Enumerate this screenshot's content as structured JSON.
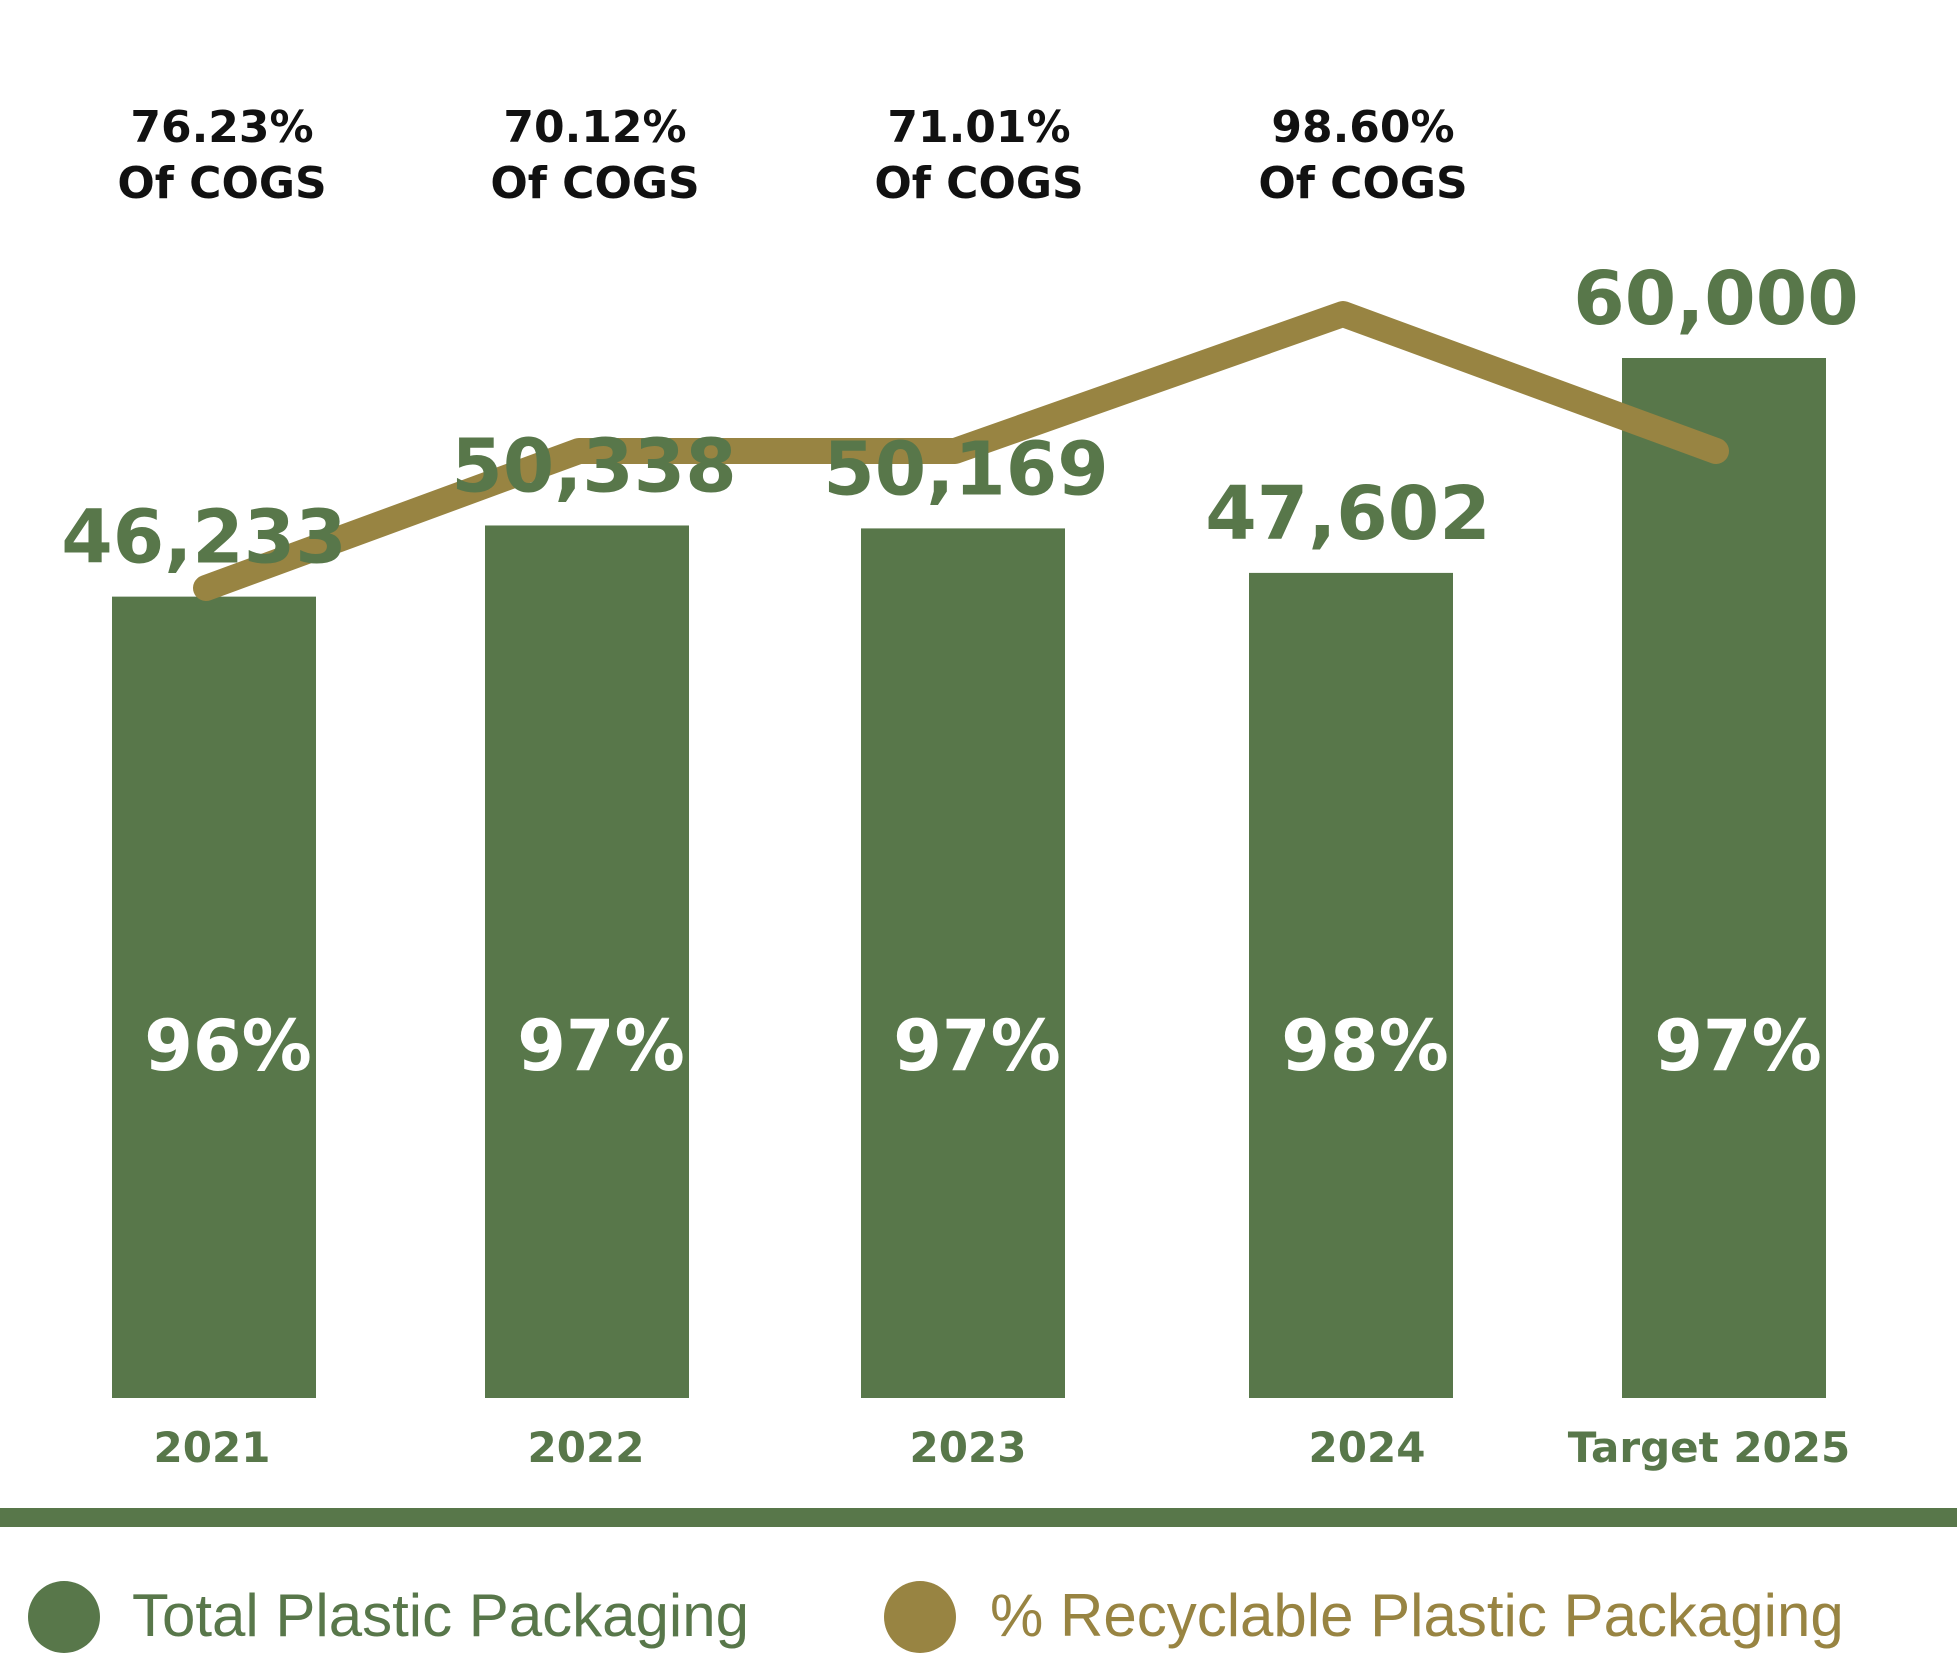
{
  "colors": {
    "total": "#58774A",
    "recyclable": "#988442",
    "text": "#111111",
    "bar_label": "#ffffff"
  },
  "chart_data": {
    "type": "bar",
    "categories": [
      "2021",
      "2022",
      "2023",
      "2024",
      "Target  2025"
    ],
    "series": [
      {
        "name": "Total Plastic Packaging",
        "values": [
          46233,
          50338,
          50169,
          47602,
          60000
        ]
      },
      {
        "name": "% Recyclable Plastic Packaging",
        "values": [
          96,
          97,
          97,
          98,
          97
        ]
      }
    ],
    "value_labels": [
      "46,233",
      "50,338",
      "50,169",
      "47,602",
      "60,000"
    ],
    "percent_labels": [
      "96%",
      "97%",
      "97%",
      "98%",
      "97%"
    ],
    "cogs_labels": [
      [
        "76.23%",
        "Of COGS"
      ],
      [
        "70.12%",
        "Of COGS"
      ],
      [
        "71.01%",
        "Of COGS"
      ],
      [
        "98.60%",
        "Of COGS"
      ]
    ],
    "legend": [
      "Total Plastic Packaging",
      "% Recyclable Plastic Packaging"
    ],
    "legend_position": "bottom",
    "grid": false
  }
}
